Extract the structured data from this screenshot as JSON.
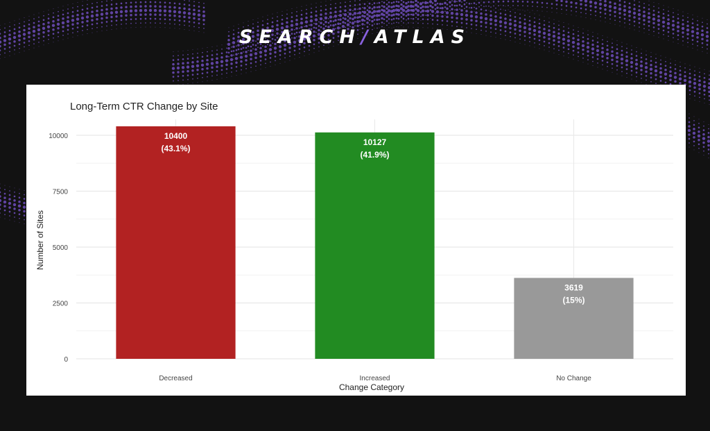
{
  "brand": {
    "left": "SEARCH",
    "slash": "/",
    "right": "ATLAS"
  },
  "colors": {
    "background": "#121212",
    "accent": "#7c56d4",
    "decreased": "#b22222",
    "increased": "#228b22",
    "no_change": "#999999"
  },
  "chart_data": {
    "type": "bar",
    "title": "Long-Term CTR Change by Site",
    "xlabel": "Change Category",
    "ylabel": "Number of Sites",
    "categories": [
      "Decreased",
      "Increased",
      "No Change"
    ],
    "values": [
      10400,
      10127,
      3619
    ],
    "bar_labels": [
      "10400",
      "10127",
      "3619"
    ],
    "pct_labels": [
      "(43.1%)",
      "(41.9%)",
      "(15%)"
    ],
    "bar_colors": [
      "#b22222",
      "#228b22",
      "#999999"
    ],
    "ylim": [
      0,
      10400
    ],
    "yticks": [
      0,
      2500,
      5000,
      7500,
      10000
    ],
    "grid": true,
    "legend": "none"
  }
}
